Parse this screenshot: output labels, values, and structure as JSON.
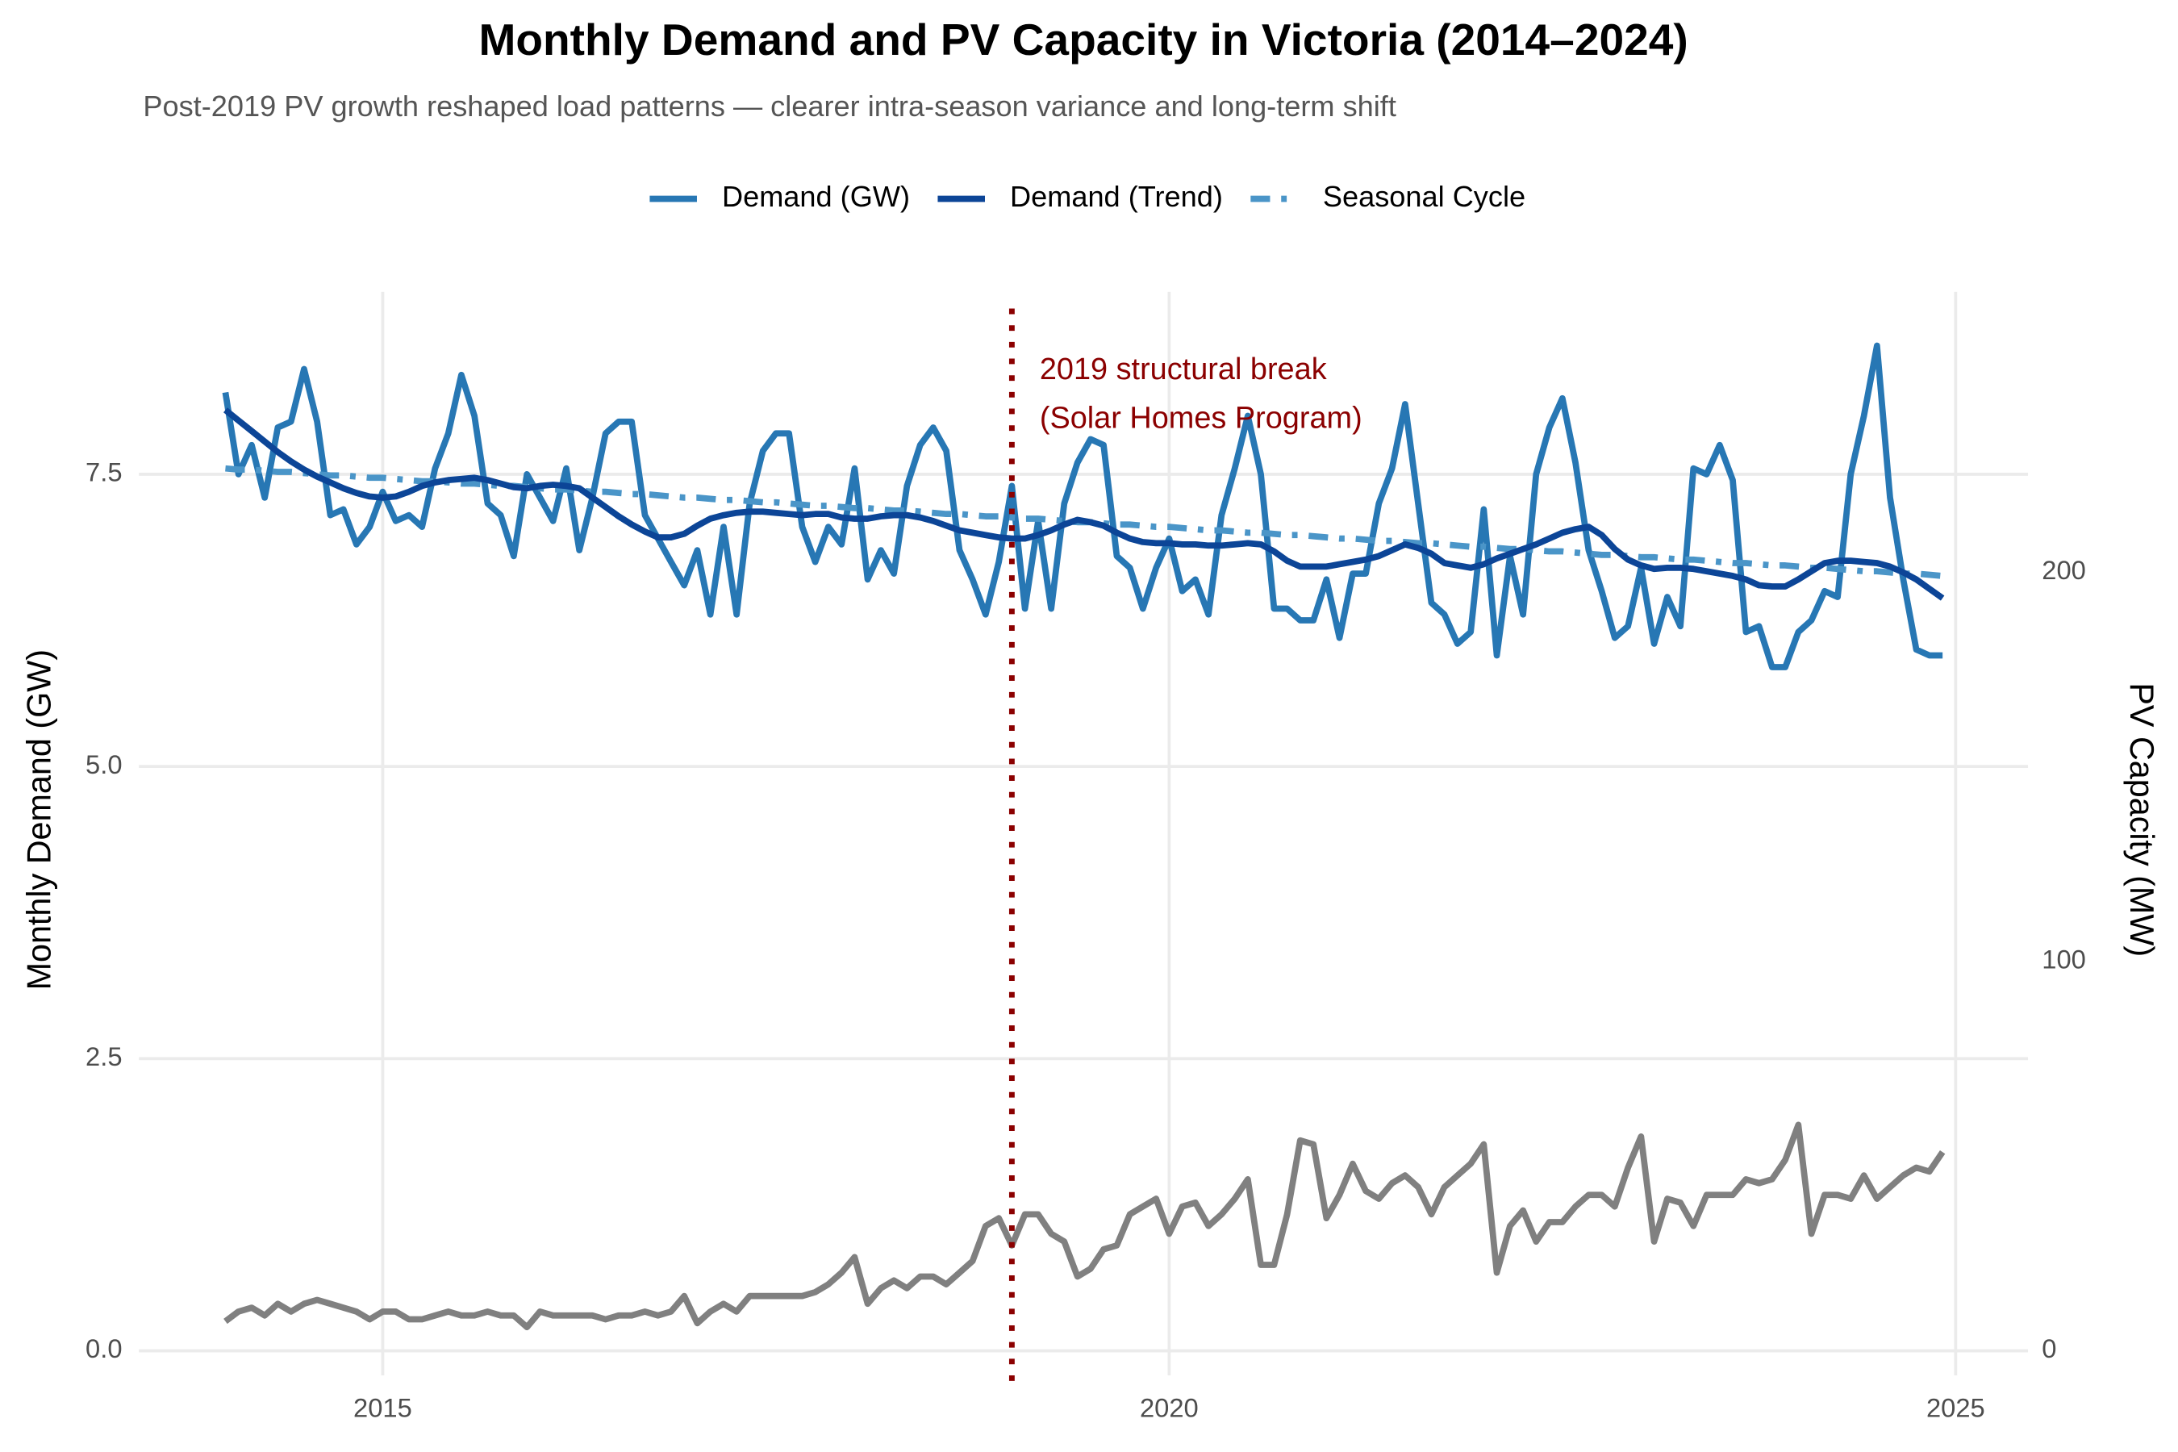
{
  "chart_data": {
    "type": "line",
    "title": "Monthly Demand and PV Capacity in Victoria (2014–2024)",
    "subtitle": "Post-2019 PV growth reshaped load patterns — clearer intra-season variance and long-term shift",
    "y_label": "Monthly Demand (GW)",
    "y2_label": "PV Capacity (MW)",
    "x": [
      2014.0,
      2014.083,
      2014.167,
      2014.25,
      2014.333,
      2014.417,
      2014.5,
      2014.583,
      2014.667,
      2014.75,
      2014.833,
      2014.917,
      2015.0,
      2015.083,
      2015.167,
      2015.25,
      2015.333,
      2015.417,
      2015.5,
      2015.583,
      2015.667,
      2015.75,
      2015.833,
      2015.917,
      2016.0,
      2016.083,
      2016.167,
      2016.25,
      2016.333,
      2016.417,
      2016.5,
      2016.583,
      2016.667,
      2016.75,
      2016.833,
      2016.917,
      2017.0,
      2017.083,
      2017.167,
      2017.25,
      2017.333,
      2017.417,
      2017.5,
      2017.583,
      2017.667,
      2017.75,
      2017.833,
      2017.917,
      2018.0,
      2018.083,
      2018.167,
      2018.25,
      2018.333,
      2018.417,
      2018.5,
      2018.583,
      2018.667,
      2018.75,
      2018.833,
      2018.917,
      2019.0,
      2019.083,
      2019.167,
      2019.25,
      2019.333,
      2019.417,
      2019.5,
      2019.583,
      2019.667,
      2019.75,
      2019.833,
      2019.917,
      2020.0,
      2020.083,
      2020.167,
      2020.25,
      2020.333,
      2020.417,
      2020.5,
      2020.583,
      2020.667,
      2020.75,
      2020.833,
      2020.917,
      2021.0,
      2021.083,
      2021.167,
      2021.25,
      2021.333,
      2021.417,
      2021.5,
      2021.583,
      2021.667,
      2021.75,
      2021.833,
      2021.917,
      2022.0,
      2022.083,
      2022.167,
      2022.25,
      2022.333,
      2022.417,
      2022.5,
      2022.583,
      2022.667,
      2022.75,
      2022.833,
      2022.917,
      2023.0,
      2023.083,
      2023.167,
      2023.25,
      2023.333,
      2023.417,
      2023.5,
      2023.583,
      2023.667,
      2023.75,
      2023.833,
      2023.917,
      2024.0,
      2024.083,
      2024.167,
      2024.25,
      2024.333,
      2024.417,
      2024.5,
      2024.583,
      2024.667,
      2024.75,
      2024.833,
      2024.917
    ],
    "series": [
      {
        "name": "Demand (GW)",
        "color": "#2777b4",
        "dash": "solid",
        "width": 4.5,
        "values": [
          8.2,
          7.5,
          7.75,
          7.3,
          7.9,
          7.95,
          8.4,
          7.95,
          7.15,
          7.2,
          6.9,
          7.05,
          7.35,
          7.1,
          7.15,
          7.05,
          7.55,
          7.85,
          8.35,
          8.0,
          7.25,
          7.15,
          6.8,
          7.5,
          7.3,
          7.1,
          7.55,
          6.85,
          7.3,
          7.85,
          7.95,
          7.95,
          7.15,
          6.95,
          6.75,
          6.55,
          6.85,
          6.3,
          7.05,
          6.3,
          7.25,
          7.7,
          7.85,
          7.85,
          7.05,
          6.75,
          7.05,
          6.9,
          7.55,
          6.6,
          6.85,
          6.65,
          7.4,
          7.75,
          7.9,
          7.7,
          6.85,
          6.6,
          6.3,
          6.75,
          7.4,
          6.35,
          7.1,
          6.35,
          7.25,
          7.6,
          7.8,
          7.75,
          6.8,
          6.7,
          6.35,
          6.7,
          6.95,
          6.5,
          6.6,
          6.3,
          7.15,
          7.55,
          8.0,
          7.5,
          6.35,
          6.35,
          6.25,
          6.25,
          6.6,
          6.1,
          6.65,
          6.65,
          7.25,
          7.55,
          8.1,
          7.25,
          6.4,
          6.3,
          6.05,
          6.15,
          7.2,
          5.95,
          6.8,
          6.3,
          7.5,
          7.9,
          8.15,
          7.6,
          6.85,
          6.5,
          6.1,
          6.2,
          6.7,
          6.05,
          6.45,
          6.2,
          7.55,
          7.5,
          7.75,
          7.45,
          6.15,
          6.2,
          5.85,
          5.85,
          6.15,
          6.25,
          6.5,
          6.45,
          7.5,
          8.0,
          8.6,
          7.3,
          6.6,
          6.0,
          5.95,
          5.95
        ]
      },
      {
        "name": "Demand (Trend)",
        "color": "#0c4597",
        "dash": "solid",
        "width": 4.5,
        "values": [
          8.05,
          7.96,
          7.87,
          7.78,
          7.69,
          7.61,
          7.54,
          7.48,
          7.43,
          7.38,
          7.34,
          7.31,
          7.3,
          7.31,
          7.35,
          7.4,
          7.43,
          7.45,
          7.46,
          7.47,
          7.45,
          7.42,
          7.39,
          7.38,
          7.4,
          7.41,
          7.4,
          7.38,
          7.3,
          7.22,
          7.14,
          7.07,
          7.01,
          6.96,
          6.96,
          6.99,
          7.06,
          7.12,
          7.15,
          7.17,
          7.18,
          7.18,
          7.17,
          7.16,
          7.15,
          7.16,
          7.16,
          7.13,
          7.12,
          7.12,
          7.14,
          7.15,
          7.15,
          7.13,
          7.1,
          7.06,
          7.02,
          7.0,
          6.98,
          6.96,
          6.95,
          6.95,
          6.98,
          7.02,
          7.07,
          7.11,
          7.09,
          7.06,
          7.0,
          6.95,
          6.92,
          6.91,
          6.91,
          6.9,
          6.9,
          6.89,
          6.89,
          6.9,
          6.91,
          6.9,
          6.84,
          6.76,
          6.71,
          6.71,
          6.71,
          6.73,
          6.75,
          6.77,
          6.8,
          6.85,
          6.9,
          6.87,
          6.82,
          6.74,
          6.72,
          6.7,
          6.73,
          6.78,
          6.82,
          6.86,
          6.9,
          6.95,
          7.0,
          7.03,
          7.05,
          6.98,
          6.86,
          6.77,
          6.72,
          6.69,
          6.7,
          6.7,
          6.69,
          6.67,
          6.65,
          6.63,
          6.6,
          6.55,
          6.54,
          6.54,
          6.6,
          6.67,
          6.74,
          6.76,
          6.76,
          6.75,
          6.74,
          6.71,
          6.66,
          6.6,
          6.52,
          6.44
        ]
      },
      {
        "name": "Seasonal Cycle",
        "color": "#4a95c8",
        "dash": "dashdot",
        "width": 4.5,
        "values": [
          7.55,
          7.54,
          7.54,
          7.53,
          7.52,
          7.52,
          7.51,
          7.5,
          7.49,
          7.49,
          7.48,
          7.47,
          7.47,
          7.46,
          7.45,
          7.44,
          7.44,
          7.43,
          7.42,
          7.42,
          7.41,
          7.4,
          7.4,
          7.39,
          7.38,
          7.37,
          7.37,
          7.36,
          7.35,
          7.35,
          7.34,
          7.33,
          7.33,
          7.32,
          7.31,
          7.3,
          7.3,
          7.29,
          7.28,
          7.28,
          7.27,
          7.26,
          7.26,
          7.25,
          7.24,
          7.23,
          7.23,
          7.22,
          7.21,
          7.21,
          7.2,
          7.19,
          7.19,
          7.18,
          7.17,
          7.16,
          7.16,
          7.15,
          7.14,
          7.14,
          7.13,
          7.12,
          7.12,
          7.11,
          7.1,
          7.09,
          7.09,
          7.08,
          7.07,
          7.07,
          7.06,
          7.05,
          7.05,
          7.04,
          7.03,
          7.02,
          7.02,
          7.01,
          7.0,
          7.0,
          6.99,
          6.98,
          6.98,
          6.97,
          6.96,
          6.95,
          6.95,
          6.94,
          6.93,
          6.93,
          6.92,
          6.91,
          6.91,
          6.9,
          6.89,
          6.88,
          6.88,
          6.87,
          6.86,
          6.86,
          6.85,
          6.84,
          6.84,
          6.83,
          6.82,
          6.81,
          6.81,
          6.8,
          6.79,
          6.79,
          6.78,
          6.77,
          6.77,
          6.76,
          6.75,
          6.74,
          6.74,
          6.73,
          6.72,
          6.72,
          6.71,
          6.7,
          6.7,
          6.69,
          6.68,
          6.67,
          6.67,
          6.66,
          6.65,
          6.65,
          6.64,
          6.63
        ]
      },
      {
        "axis": "y2",
        "color": "#808080",
        "dash": "solid",
        "width": 4.5,
        "values": [
          7.5,
          10,
          11,
          9,
          12,
          10,
          12,
          13,
          12,
          11,
          10,
          8,
          10,
          10,
          8,
          8,
          9,
          10,
          9,
          9,
          10,
          9,
          9,
          6,
          10,
          9,
          9,
          9,
          9,
          8,
          9,
          9,
          10,
          9,
          10,
          14,
          7,
          10,
          12,
          10,
          14,
          14,
          14,
          14,
          14,
          15,
          17,
          20,
          24,
          12,
          16,
          18,
          16,
          19,
          19,
          17,
          20,
          23,
          32,
          34,
          27,
          35,
          35,
          30,
          28,
          19,
          21,
          26,
          27,
          35,
          37,
          39,
          30,
          37,
          38,
          32,
          35,
          39,
          44,
          22,
          22,
          35,
          54,
          53,
          34,
          40,
          48,
          41,
          39,
          43,
          45,
          42,
          35,
          42,
          45,
          48,
          53,
          20,
          32,
          36,
          28,
          33,
          33,
          37,
          40,
          40,
          37,
          47,
          55,
          28,
          39,
          38,
          32,
          40,
          40,
          40,
          44,
          43,
          44,
          49,
          58,
          30,
          40,
          40,
          39,
          45,
          39,
          42,
          45,
          47,
          46,
          51
        ]
      }
    ],
    "annotations": [
      {
        "x": 2019,
        "color": "#8b0000",
        "lines": [
          "2019 structural break",
          "(Solar Homes Program)"
        ]
      }
    ],
    "xlim": [
      2013.45,
      2025.46
    ],
    "xticks": [
      2015,
      2020,
      2025
    ],
    "ylim": [
      -0.21,
      9.06
    ],
    "yticks": [
      {
        "value": 0,
        "label": "0.0"
      },
      2.5,
      {
        "value": 5,
        "label": "5.0"
      },
      7.5
    ],
    "y2lim": [
      -6.4,
      272.1
    ],
    "y2ticks": [
      0,
      100,
      200
    ],
    "grid": true,
    "legend": "top"
  }
}
